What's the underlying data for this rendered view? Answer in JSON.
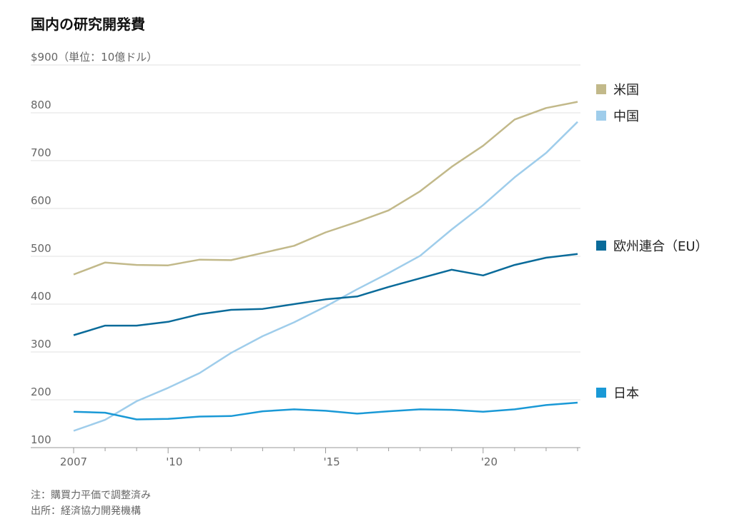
{
  "title": "国内の研究開発費",
  "chart_data": {
    "type": "line",
    "title": "国内の研究開発費",
    "y_tick_labels": [
      "100",
      "200",
      "300",
      "400",
      "500",
      "600",
      "700",
      "800",
      "$900（単位：10億ドル）"
    ],
    "y_ticks": [
      100,
      200,
      300,
      400,
      500,
      600,
      700,
      800,
      900
    ],
    "ylim": [
      100,
      900
    ],
    "ylabel": "（単位：10億ドル）",
    "x_tick_labels": [
      "2007",
      "'10",
      "'15",
      "'20"
    ],
    "x_ticks": [
      2007,
      2010,
      2015,
      2020
    ],
    "xlim": [
      2007,
      2023
    ],
    "grid": true,
    "legend_position": "right",
    "x": [
      2007,
      2008,
      2009,
      2010,
      2011,
      2012,
      2013,
      2014,
      2015,
      2016,
      2017,
      2018,
      2019,
      2020,
      2021,
      2022,
      2023
    ],
    "series": [
      {
        "name": "米国",
        "color": "#c2b98a",
        "values": [
          462,
          487,
          482,
          481,
          493,
          492,
          507,
          522,
          550,
          572,
          596,
          636,
          687,
          731,
          786,
          810,
          823
        ]
      },
      {
        "name": "中国",
        "color": "#9fcdeb",
        "values": [
          135,
          158,
          197,
          225,
          256,
          298,
          333,
          362,
          395,
          431,
          465,
          501,
          556,
          607,
          665,
          716,
          781
        ]
      },
      {
        "name": "欧州連合（EU）",
        "color": "#0a6b9a",
        "values": [
          335,
          355,
          355,
          363,
          379,
          388,
          390,
          400,
          410,
          416,
          436,
          454,
          472,
          460,
          482,
          497,
          505
        ]
      },
      {
        "name": "日本",
        "color": "#1a99d6",
        "values": [
          175,
          173,
          159,
          160,
          165,
          166,
          176,
          180,
          177,
          171,
          176,
          180,
          179,
          175,
          180,
          189,
          194
        ]
      }
    ],
    "notes": [
      "注：購買力平価で調整済み",
      "出所：経済協力開発機構"
    ]
  }
}
